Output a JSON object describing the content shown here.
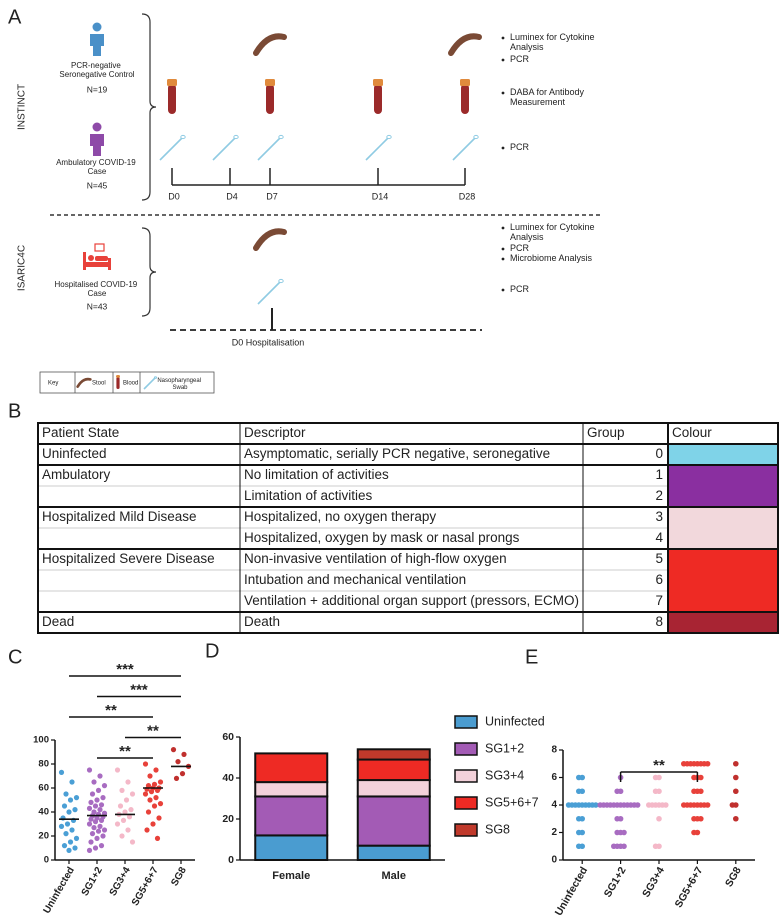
{
  "panel_labels": [
    "A",
    "B",
    "C",
    "D",
    "E"
  ],
  "diagram": {
    "cohorts": [
      {
        "label": "INSTINCT",
        "participants": [
          {
            "label": "PCR-negative Seronegative Control",
            "n": "N=19",
            "color": "#4a90c8"
          },
          {
            "label": "Ambulatory COVID-19 Case",
            "n": "N=45",
            "color": "#8e4aa8"
          }
        ],
        "timepoints": [
          "D0",
          "D4",
          "D7",
          "D14",
          "D28"
        ],
        "assays": [
          "Luminex for Cytokine Analysis",
          "PCR",
          "DABA for Antibody Measurement",
          "PCR"
        ]
      },
      {
        "label": "ISARIC4C",
        "participants": [
          {
            "label": "Hospitalised COVID-19 Case",
            "n": "N=43",
            "color": "#e8413a"
          }
        ],
        "timepoints": [
          "D0 Hospitalisation"
        ],
        "assays": [
          "Luminex for Cytokine Analysis",
          "PCR",
          "Microbiome Analysis",
          "PCR"
        ]
      }
    ],
    "key": {
      "title": "Key",
      "items": [
        "Stool",
        "Blood",
        "Nasopharyngeal Swab"
      ]
    }
  },
  "table": {
    "columns": [
      "Patient State",
      "Descriptor",
      "Group",
      "Colour"
    ],
    "groups": [
      {
        "state": "Uninfected",
        "color": "#7fd3e8",
        "rows": [
          {
            "descriptor": "Asymptomatic, serially PCR negative, seronegative",
            "group": 0
          }
        ]
      },
      {
        "state": "Ambulatory",
        "color": "#8a2fa0",
        "rows": [
          {
            "descriptor": "No limitation of activities",
            "group": 1
          },
          {
            "descriptor": "Limitation of activities",
            "group": 2
          }
        ]
      },
      {
        "state": "Hospitalized Mild Disease",
        "color": "#f2d8dc",
        "rows": [
          {
            "descriptor": "Hospitalized, no oxygen therapy",
            "group": 3
          },
          {
            "descriptor": "Hospitalized, oxygen by mask or nasal prongs",
            "group": 4
          }
        ]
      },
      {
        "state": "Hospitalized Severe Disease",
        "color": "#ee2a24",
        "rows": [
          {
            "descriptor": "Non-invasive ventilation of high-flow oxygen",
            "group": 5
          },
          {
            "descriptor": "Intubation and mechanical ventilation",
            "group": 6
          },
          {
            "descriptor": "Ventilation + additional organ support (pressors, ECMO)",
            "group": 7
          }
        ]
      },
      {
        "state": "Dead",
        "color": "#a82433",
        "rows": [
          {
            "descriptor": "Death",
            "group": 8
          }
        ]
      }
    ]
  },
  "chart_data": [
    {
      "type": "strip",
      "categories": [
        "Uninfected",
        "SG1+2",
        "SG3+4",
        "SG5+6+7",
        "SG8"
      ],
      "colors": [
        "#4a9fd5",
        "#a86cc1",
        "#f4b8c8",
        "#e8413a",
        "#c0302e"
      ],
      "values": [
        [
          73,
          65,
          55,
          52,
          50,
          45,
          42,
          40,
          35,
          33,
          30,
          28,
          25,
          22,
          18,
          15,
          12,
          10,
          8
        ],
        [
          75,
          70,
          65,
          62,
          58,
          55,
          52,
          50,
          48,
          46,
          45,
          43,
          42,
          40,
          39,
          38,
          37,
          36,
          35,
          34,
          33,
          32,
          30,
          28,
          27,
          25,
          24,
          22,
          20,
          18,
          15,
          12,
          10,
          8
        ],
        [
          75,
          65,
          58,
          55,
          50,
          45,
          42,
          40,
          38,
          36,
          33,
          30,
          25,
          20,
          15
        ],
        [
          80,
          75,
          70,
          65,
          63,
          62,
          60,
          60,
          59,
          58,
          57,
          55,
          52,
          50,
          47,
          45,
          40,
          35,
          30,
          25,
          18
        ],
        [
          92,
          88,
          82,
          78,
          72,
          68
        ]
      ],
      "medians": [
        34,
        37,
        38,
        60,
        78
      ],
      "ylim": [
        0,
        100
      ],
      "yticks": [
        0,
        20,
        40,
        60,
        80,
        100
      ],
      "comparisons": [
        {
          "from": "Uninfected",
          "to": "SG8",
          "label": "***"
        },
        {
          "from": "SG1+2",
          "to": "SG8",
          "label": "***"
        },
        {
          "from": "Uninfected",
          "to": "SG5+6+7",
          "label": "**"
        },
        {
          "from": "SG3+4",
          "to": "SG8",
          "label": "**"
        },
        {
          "from": "SG1+2",
          "to": "SG5+6+7",
          "label": "**"
        }
      ]
    },
    {
      "type": "stacked_bar",
      "categories": [
        "Female",
        "Male"
      ],
      "series": [
        {
          "name": "Uninfected",
          "color": "#4a9cd0",
          "values": [
            12,
            7
          ]
        },
        {
          "name": "SG1+2",
          "color": "#a35bb5",
          "values": [
            19,
            24
          ]
        },
        {
          "name": "SG3+4",
          "color": "#f3d1da",
          "values": [
            7,
            8
          ]
        },
        {
          "name": "SG5+6+7",
          "color": "#ee2a24",
          "values": [
            14,
            10
          ]
        },
        {
          "name": "SG8",
          "color": "#c0392b",
          "values": [
            0,
            5
          ]
        }
      ],
      "ylim": [
        0,
        60
      ],
      "yticks": [
        0,
        20,
        40,
        60
      ],
      "legend": "right"
    },
    {
      "type": "strip",
      "categories": [
        "Uninfected",
        "SG1+2",
        "SG3+4",
        "SG5+6+7",
        "SG8"
      ],
      "colors": [
        "#4a9fd5",
        "#a86cc1",
        "#f4b8c8",
        "#e8413a",
        "#c0302e"
      ],
      "values": [
        [
          6,
          6,
          5,
          5,
          4,
          4,
          4,
          4,
          4,
          4,
          4,
          4,
          4,
          3,
          3,
          2,
          2,
          1,
          1
        ],
        [
          6,
          5,
          5,
          4,
          4,
          4,
          4,
          4,
          4,
          4,
          4,
          4,
          4,
          4,
          4,
          3,
          3,
          2,
          2,
          2,
          1,
          1,
          1,
          1
        ],
        [
          6,
          6,
          5,
          5,
          4,
          4,
          4,
          4,
          4,
          4,
          3,
          1,
          1
        ],
        [
          7,
          7,
          7,
          7,
          7,
          7,
          7,
          7,
          6,
          6,
          6,
          5,
          5,
          5,
          4,
          4,
          4,
          4,
          4,
          4,
          4,
          4,
          3,
          3,
          3,
          2,
          2
        ],
        [
          7,
          6,
          5,
          4,
          4,
          3
        ]
      ],
      "ylim": [
        0,
        8
      ],
      "yticks": [
        0,
        2,
        4,
        6,
        8
      ],
      "comparisons": [
        {
          "from": "SG1+2",
          "to": "SG5+6+7",
          "label": "**"
        }
      ]
    }
  ]
}
